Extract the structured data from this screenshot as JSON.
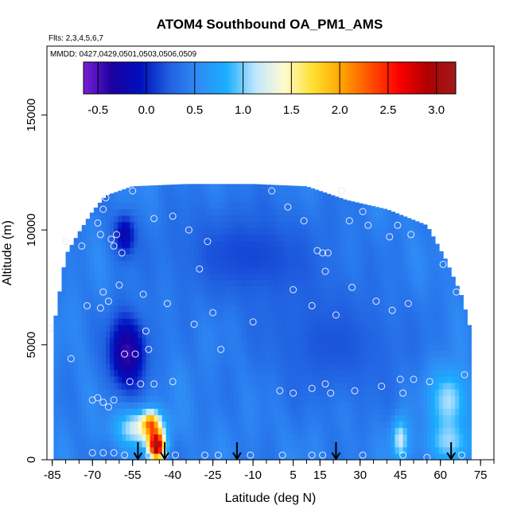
{
  "chart_data": {
    "type": "heatmap",
    "title": "ATOM4 Southbound OA_PM1_AMS",
    "flights_note": "Flts: 2,3,4,5,6,7",
    "dates_note": "MMDD: 0427,0429,0501,0503,0506,0509",
    "xlabel": "Latitude (deg N)",
    "ylabel": "Altitude (m)",
    "xlim": [
      -87,
      80
    ],
    "ylim": [
      0,
      18000
    ],
    "x_ticks": [
      -85,
      -70,
      -55,
      -40,
      -25,
      -10,
      5,
      15,
      30,
      45,
      60,
      75
    ],
    "y_ticks": [
      0,
      5000,
      10000,
      15000
    ],
    "colorbar": {
      "min": -0.65,
      "max": 3.2,
      "tick_values": [
        -0.5,
        0.0,
        0.5,
        1.0,
        1.5,
        2.0,
        2.5,
        3.0
      ],
      "tick_labels": [
        "-0.5",
        "0.0",
        "0.5",
        "1.0",
        "1.5",
        "2.0",
        "2.5",
        "3.0"
      ],
      "colors": [
        "#7b1fd6",
        "#1a00a0",
        "#0010c0",
        "#2060e0",
        "#2f8cf5",
        "#1aaeff",
        "#c0e6ff",
        "#fffbd0",
        "#ffe030",
        "#ffa500",
        "#ff5000",
        "#ff0000",
        "#b00000",
        "#a01a1a"
      ]
    },
    "ceiling_profile": [
      {
        "lat": -85,
        "alt": 5400
      },
      {
        "lat": -80,
        "alt": 8900
      },
      {
        "lat": -75,
        "alt": 9900
      },
      {
        "lat": -70,
        "alt": 10800
      },
      {
        "lat": -65,
        "alt": 11500
      },
      {
        "lat": -55,
        "alt": 11900
      },
      {
        "lat": -35,
        "alt": 12000
      },
      {
        "lat": -10,
        "alt": 12000
      },
      {
        "lat": 10,
        "alt": 11900
      },
      {
        "lat": 25,
        "alt": 11300
      },
      {
        "lat": 40,
        "alt": 10900
      },
      {
        "lat": 55,
        "alt": 10200
      },
      {
        "lat": 62,
        "alt": 8700
      },
      {
        "lat": 68,
        "alt": 7100
      },
      {
        "lat": 72,
        "alt": 5300
      }
    ],
    "features": [
      {
        "lat": -57,
        "alt": 4700,
        "lat_radius": 7,
        "alt_radius": 1600,
        "value": -0.45
      },
      {
        "lat": -58,
        "alt": 9800,
        "lat_radius": 4,
        "alt_radius": 900,
        "value": -0.2
      },
      {
        "lat": -12,
        "alt": 9000,
        "lat_radius": 30,
        "alt_radius": 2200,
        "value": 0.15
      },
      {
        "lat": 20,
        "alt": 5000,
        "lat_radius": 28,
        "alt_radius": 2500,
        "value": 0.2
      },
      {
        "lat": -52,
        "alt": 1400,
        "lat_radius": 9,
        "alt_radius": 800,
        "value": 1.3
      },
      {
        "lat": -46,
        "alt": 600,
        "lat_radius": 3,
        "alt_radius": 600,
        "value": 3.0
      },
      {
        "lat": -48,
        "alt": 1600,
        "lat_radius": 3,
        "alt_radius": 500,
        "value": 1.6
      },
      {
        "lat": 45,
        "alt": 900,
        "lat_radius": 3,
        "alt_radius": 900,
        "value": 1.2
      },
      {
        "lat": 63,
        "alt": 2600,
        "lat_radius": 7,
        "alt_radius": 1400,
        "value": 1.1
      },
      {
        "lat": 63,
        "alt": 700,
        "lat_radius": 8,
        "alt_radius": 800,
        "value": 0.95
      }
    ],
    "sample_points": [
      {
        "lat": -86,
        "alt": 5700
      },
      {
        "lat": -80,
        "alt": 9500
      },
      {
        "lat": -78,
        "alt": 4400
      },
      {
        "lat": -74,
        "alt": 9300
      },
      {
        "lat": -72,
        "alt": 6700
      },
      {
        "lat": -68,
        "alt": 10300
      },
      {
        "lat": -67,
        "alt": 9800
      },
      {
        "lat": -67,
        "alt": 6600
      },
      {
        "lat": -66,
        "alt": 10900
      },
      {
        "lat": -66,
        "alt": 7300
      },
      {
        "lat": -65,
        "alt": 11400
      },
      {
        "lat": -64,
        "alt": 6900
      },
      {
        "lat": -63,
        "alt": 9600
      },
      {
        "lat": -62,
        "alt": 9300
      },
      {
        "lat": -61,
        "alt": 9800
      },
      {
        "lat": -60,
        "alt": 7600
      },
      {
        "lat": -59,
        "alt": 9000
      },
      {
        "lat": -58,
        "alt": 4600
      },
      {
        "lat": -55,
        "alt": 11700
      },
      {
        "lat": -54,
        "alt": 4600
      },
      {
        "lat": -51,
        "alt": 7200
      },
      {
        "lat": -50,
        "alt": 5600
      },
      {
        "lat": -49,
        "alt": 4800
      },
      {
        "lat": -47,
        "alt": 10500
      },
      {
        "lat": -42,
        "alt": 6800
      },
      {
        "lat": -40,
        "alt": 10600
      },
      {
        "lat": -34,
        "alt": 10000
      },
      {
        "lat": -32,
        "alt": 5900
      },
      {
        "lat": -30,
        "alt": 8300
      },
      {
        "lat": -27,
        "alt": 9500
      },
      {
        "lat": -25,
        "alt": 6400
      },
      {
        "lat": -22,
        "alt": 4800
      },
      {
        "lat": -10,
        "alt": 6000
      },
      {
        "lat": -3,
        "alt": 11700
      },
      {
        "lat": 3,
        "alt": 11000
      },
      {
        "lat": 5,
        "alt": 7400
      },
      {
        "lat": 9,
        "alt": 10400
      },
      {
        "lat": 12,
        "alt": 6700
      },
      {
        "lat": 14,
        "alt": 9100
      },
      {
        "lat": 16,
        "alt": 9000
      },
      {
        "lat": 17,
        "alt": 8200
      },
      {
        "lat": 18,
        "alt": 9000
      },
      {
        "lat": 21,
        "alt": 6300
      },
      {
        "lat": 23,
        "alt": 11700
      },
      {
        "lat": 26,
        "alt": 10400
      },
      {
        "lat": 27,
        "alt": 7500
      },
      {
        "lat": 31,
        "alt": 10800
      },
      {
        "lat": 33,
        "alt": 10200
      },
      {
        "lat": 36,
        "alt": 6900
      },
      {
        "lat": 38,
        "alt": 3200
      },
      {
        "lat": 41,
        "alt": 9700
      },
      {
        "lat": 42,
        "alt": 6500
      },
      {
        "lat": 44,
        "alt": 10200
      },
      {
        "lat": 45,
        "alt": 3500
      },
      {
        "lat": 48,
        "alt": 6800
      },
      {
        "lat": 49,
        "alt": 9800
      },
      {
        "lat": 50,
        "alt": 3500
      },
      {
        "lat": 56,
        "alt": 3400
      },
      {
        "lat": 61,
        "alt": 8500
      },
      {
        "lat": 66,
        "alt": 7300
      },
      {
        "lat": 69,
        "alt": 3700
      },
      {
        "lat": -70,
        "alt": 2600
      },
      {
        "lat": -68,
        "alt": 2700
      },
      {
        "lat": -66,
        "alt": 2500
      },
      {
        "lat": -64,
        "alt": 2300
      },
      {
        "lat": -62,
        "alt": 2600
      },
      {
        "lat": -56,
        "alt": 3400
      },
      {
        "lat": -52,
        "alt": 3300
      },
      {
        "lat": -47,
        "alt": 3300
      },
      {
        "lat": -40,
        "alt": 3400
      },
      {
        "lat": 0,
        "alt": 3000
      },
      {
        "lat": 5,
        "alt": 2900
      },
      {
        "lat": 12,
        "alt": 3100
      },
      {
        "lat": 17,
        "alt": 3300
      },
      {
        "lat": 19,
        "alt": 2900
      },
      {
        "lat": 28,
        "alt": 3000
      },
      {
        "lat": 46,
        "alt": 2900
      },
      {
        "lat": -70,
        "alt": 300
      },
      {
        "lat": -66,
        "alt": 300
      },
      {
        "lat": -62,
        "alt": 300
      },
      {
        "lat": -58,
        "alt": 200
      },
      {
        "lat": -49,
        "alt": 200
      },
      {
        "lat": -43,
        "alt": 200
      },
      {
        "lat": -39,
        "alt": 200
      },
      {
        "lat": -28,
        "alt": 200
      },
      {
        "lat": -23,
        "alt": 200
      },
      {
        "lat": -11,
        "alt": 200
      },
      {
        "lat": 1,
        "alt": 200
      },
      {
        "lat": 12,
        "alt": 200
      },
      {
        "lat": 16,
        "alt": 200
      },
      {
        "lat": 31,
        "alt": 200
      },
      {
        "lat": 46,
        "alt": 200
      },
      {
        "lat": 55,
        "alt": 100
      },
      {
        "lat": 68,
        "alt": 200
      }
    ],
    "arrows_lat": [
      -53,
      -43,
      -16,
      21,
      64
    ]
  }
}
